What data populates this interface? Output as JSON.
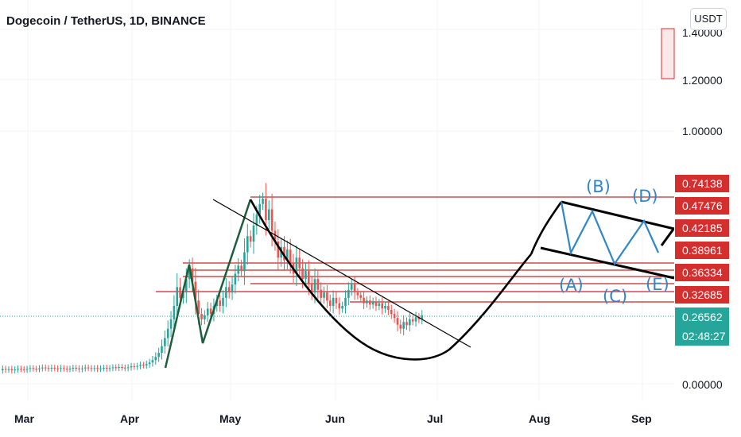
{
  "header": {
    "title": "Dogecoin / TetherUS, 1D, BINANCE",
    "currency": "USDT"
  },
  "colors": {
    "up": "#26a69a",
    "down": "#ef5350",
    "level_line": "#c62828",
    "pattern_line": "#000000",
    "wave_line": "#2f86c9",
    "impulse_line": "#1b5e3b",
    "last_price": "#26a69a",
    "level_tag": "#d32f2f"
  },
  "chart_data": {
    "type": "candlestick",
    "symbol": "DOGEUSDT",
    "interval": "1D",
    "exchange": "BINANCE",
    "y_ticks": [
      "1.40000",
      "1.20000",
      "1.00000",
      "0.00000"
    ],
    "x_ticks": [
      "Mar",
      "Apr",
      "May",
      "Jun",
      "Jul",
      "Aug",
      "Sep"
    ],
    "level_tags": [
      "0.74138",
      "0.47476",
      "0.42185",
      "0.38961",
      "0.36334",
      "0.32685"
    ],
    "last_price": "0.26562",
    "countdown": "02:48:27",
    "annotations": {
      "wave_labels": [
        "(A)",
        "(B)",
        "(C)",
        "(D)",
        "(E)"
      ]
    },
    "candles": [
      [
        0.06,
        0.065
      ],
      [
        0.065,
        0.062
      ],
      [
        0.062,
        0.064
      ],
      [
        0.064,
        0.06
      ],
      [
        0.06,
        0.063
      ],
      [
        0.063,
        0.066
      ],
      [
        0.066,
        0.064
      ],
      [
        0.064,
        0.062
      ],
      [
        0.062,
        0.065
      ],
      [
        0.065,
        0.068
      ],
      [
        0.068,
        0.066
      ],
      [
        0.066,
        0.064
      ],
      [
        0.064,
        0.067
      ],
      [
        0.067,
        0.07
      ],
      [
        0.07,
        0.068
      ],
      [
        0.068,
        0.066
      ],
      [
        0.066,
        0.069
      ],
      [
        0.069,
        0.067
      ],
      [
        0.067,
        0.065
      ],
      [
        0.065,
        0.068
      ],
      [
        0.068,
        0.066
      ],
      [
        0.066,
        0.064
      ],
      [
        0.064,
        0.066
      ],
      [
        0.066,
        0.069
      ],
      [
        0.069,
        0.067
      ],
      [
        0.067,
        0.064
      ],
      [
        0.064,
        0.067
      ],
      [
        0.067,
        0.07
      ],
      [
        0.07,
        0.068
      ],
      [
        0.068,
        0.066
      ],
      [
        0.066,
        0.068
      ],
      [
        0.068,
        0.065
      ],
      [
        0.065,
        0.067
      ],
      [
        0.067,
        0.069
      ],
      [
        0.069,
        0.066
      ],
      [
        0.066,
        0.068
      ],
      [
        0.068,
        0.071
      ],
      [
        0.071,
        0.069
      ],
      [
        0.069,
        0.072
      ],
      [
        0.072,
        0.07
      ],
      [
        0.07,
        0.068
      ],
      [
        0.068,
        0.071
      ],
      [
        0.071,
        0.075
      ],
      [
        0.075,
        0.073
      ],
      [
        0.073,
        0.076
      ],
      [
        0.076,
        0.08
      ],
      [
        0.08,
        0.078
      ],
      [
        0.078,
        0.083
      ],
      [
        0.083,
        0.089
      ],
      [
        0.089,
        0.098
      ],
      [
        0.098,
        0.11
      ],
      [
        0.11,
        0.125
      ],
      [
        0.125,
        0.15
      ],
      [
        0.15,
        0.18
      ],
      [
        0.18,
        0.215
      ],
      [
        0.215,
        0.25
      ],
      [
        0.25,
        0.3
      ],
      [
        0.3,
        0.37
      ],
      [
        0.37,
        0.33
      ],
      [
        0.33,
        0.35
      ],
      [
        0.35,
        0.4
      ],
      [
        0.4,
        0.44
      ],
      [
        0.44,
        0.39
      ],
      [
        0.39,
        0.32
      ],
      [
        0.32,
        0.27
      ],
      [
        0.27,
        0.25
      ],
      [
        0.25,
        0.265
      ],
      [
        0.265,
        0.29
      ],
      [
        0.29,
        0.27
      ],
      [
        0.27,
        0.3
      ],
      [
        0.3,
        0.32
      ],
      [
        0.32,
        0.3
      ],
      [
        0.3,
        0.33
      ],
      [
        0.33,
        0.37
      ],
      [
        0.37,
        0.35
      ],
      [
        0.35,
        0.38
      ],
      [
        0.38,
        0.42
      ],
      [
        0.42,
        0.45
      ],
      [
        0.45,
        0.43
      ],
      [
        0.43,
        0.5
      ],
      [
        0.5,
        0.56
      ],
      [
        0.56,
        0.54
      ],
      [
        0.54,
        0.6
      ],
      [
        0.6,
        0.64
      ],
      [
        0.64,
        0.68
      ],
      [
        0.68,
        0.7
      ],
      [
        0.7,
        0.62
      ],
      [
        0.62,
        0.66
      ],
      [
        0.66,
        0.58
      ],
      [
        0.58,
        0.54
      ],
      [
        0.54,
        0.48
      ],
      [
        0.48,
        0.52
      ],
      [
        0.52,
        0.47
      ],
      [
        0.47,
        0.51
      ],
      [
        0.51,
        0.46
      ],
      [
        0.46,
        0.42
      ],
      [
        0.42,
        0.48
      ],
      [
        0.48,
        0.44
      ],
      [
        0.44,
        0.4
      ],
      [
        0.4,
        0.43
      ],
      [
        0.43,
        0.38
      ],
      [
        0.38,
        0.35
      ],
      [
        0.35,
        0.4
      ],
      [
        0.4,
        0.36
      ],
      [
        0.36,
        0.33
      ],
      [
        0.33,
        0.35
      ],
      [
        0.35,
        0.32
      ],
      [
        0.32,
        0.3
      ],
      [
        0.3,
        0.33
      ],
      [
        0.33,
        0.31
      ],
      [
        0.31,
        0.29
      ],
      [
        0.29,
        0.3
      ],
      [
        0.3,
        0.33
      ],
      [
        0.33,
        0.36
      ],
      [
        0.36,
        0.38
      ],
      [
        0.38,
        0.35
      ],
      [
        0.35,
        0.34
      ],
      [
        0.34,
        0.33
      ],
      [
        0.33,
        0.31
      ],
      [
        0.31,
        0.32
      ],
      [
        0.32,
        0.305
      ],
      [
        0.305,
        0.315
      ],
      [
        0.315,
        0.3
      ],
      [
        0.3,
        0.31
      ],
      [
        0.31,
        0.29
      ],
      [
        0.29,
        0.3
      ],
      [
        0.3,
        0.285
      ],
      [
        0.285,
        0.27
      ],
      [
        0.27,
        0.255
      ],
      [
        0.255,
        0.23
      ],
      [
        0.23,
        0.215
      ],
      [
        0.215,
        0.24
      ],
      [
        0.24,
        0.228
      ],
      [
        0.228,
        0.25
      ],
      [
        0.25,
        0.242
      ],
      [
        0.242,
        0.258
      ],
      [
        0.258,
        0.25
      ],
      [
        0.25,
        0.265
      ]
    ]
  }
}
